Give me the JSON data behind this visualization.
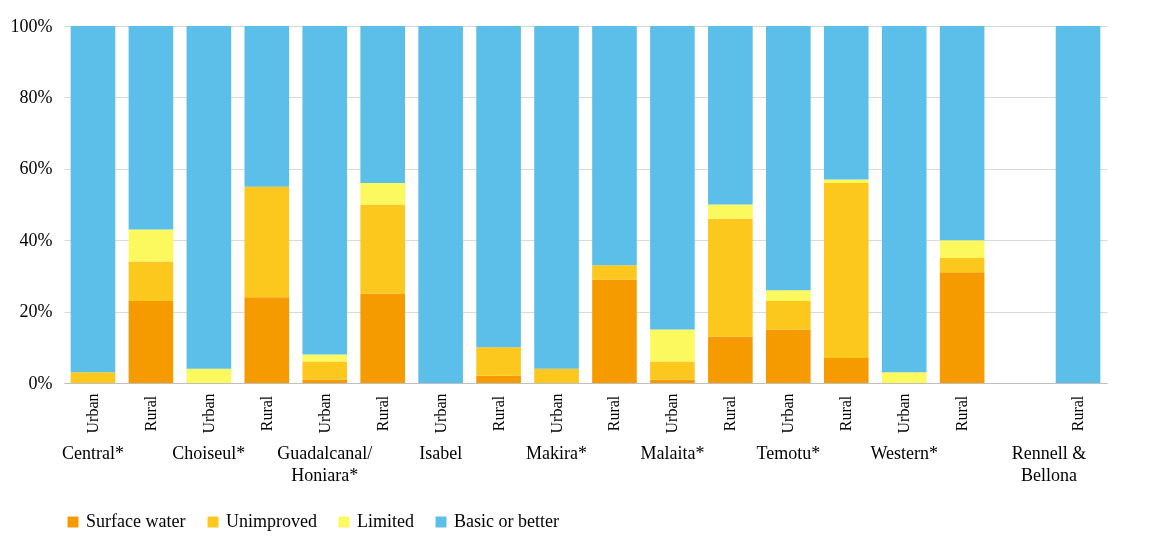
{
  "chart_data": {
    "type": "bar",
    "stacked": true,
    "categories": [
      "Urban",
      "Rural",
      "Urban",
      "Rural",
      "Urban",
      "Rural",
      "Urban",
      "Rural",
      "Urban",
      "Rural",
      "Urban",
      "Rural",
      "Urban",
      "Rural",
      "Urban",
      "Rural",
      null,
      "Rural"
    ],
    "series": [
      {
        "name": "Surface water",
        "color": "#f59b00",
        "values": [
          0,
          23,
          0,
          24,
          1,
          25,
          0,
          2,
          0,
          29,
          1,
          13,
          15,
          7,
          0,
          31,
          null,
          0
        ]
      },
      {
        "name": "Unimproved",
        "color": "#fcc81d",
        "values": [
          3,
          11,
          0,
          31,
          5,
          25,
          0,
          8,
          4,
          4,
          5,
          33,
          8,
          49,
          0,
          4,
          null,
          0
        ]
      },
      {
        "name": "Limited",
        "color": "#fbf95e",
        "values": [
          0,
          9,
          4,
          0,
          2,
          6,
          0,
          0,
          0,
          0,
          9,
          4,
          3,
          1,
          3,
          5,
          null,
          0
        ]
      },
      {
        "name": "Basic or better",
        "color": "#5bbfe9",
        "values": [
          97,
          57,
          96,
          45,
          92,
          44,
          100,
          90,
          96,
          67,
          85,
          50,
          74,
          43,
          97,
          60,
          null,
          100
        ]
      }
    ],
    "ylim": [
      0,
      100
    ],
    "yticks": [
      {
        "value": 0,
        "label": "0%"
      },
      {
        "value": 20,
        "label": "20%"
      },
      {
        "value": 40,
        "label": "40%"
      },
      {
        "value": 60,
        "label": "60%"
      },
      {
        "value": 80,
        "label": "80%"
      },
      {
        "value": 100,
        "label": "100%"
      }
    ],
    "grid": "y",
    "legend": "bottom",
    "annotations": [
      "Central*",
      "Choiseul*",
      "Guadalcanal/Honiara*",
      "Isabel",
      "Makira*",
      "Malaita*",
      "Temotu*",
      "Western*",
      "Rennell & Bellona"
    ]
  }
}
